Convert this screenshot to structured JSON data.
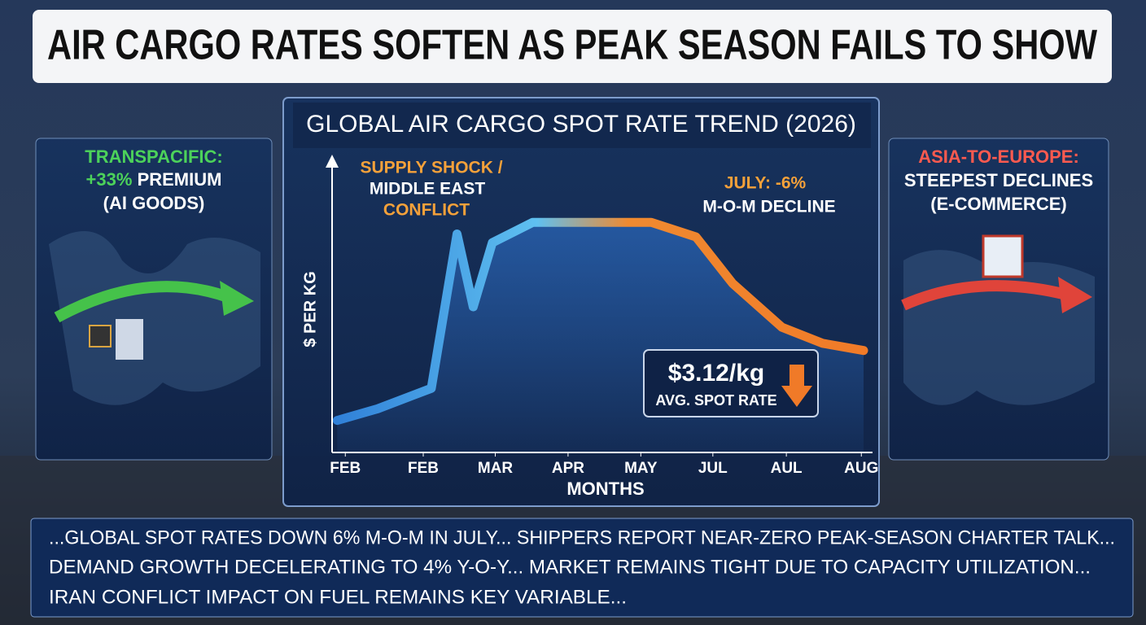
{
  "header": {
    "title": "AIR CARGO RATES SOFTEN AS PEAK SEASON FAILS TO SHOW"
  },
  "chart_data": {
    "type": "line",
    "title": "GLOBAL AIR CARGO SPOT RATE TREND (2026)",
    "y_label": "$ PER KG",
    "x_label": "MONTHS",
    "x": [
      -0.11,
      0.44,
      1.17,
      1.52,
      1.74,
      2.0,
      2.55,
      4.16,
      4.77,
      5.27,
      5.94,
      6.49,
      7.05
    ],
    "series": [
      {
        "colors": [
          "#2f7fd8",
          "#5fc0f0",
          "#f08a30",
          "#f07a28"
        ],
        "fill": "#2a66b8",
        "values": [
          1.1,
          1.5,
          2.2,
          7.5,
          5.0,
          7.2,
          7.9,
          7.9,
          7.4,
          5.8,
          4.3,
          3.75,
          3.5
        ]
      }
    ],
    "xlim": [
      -0.18,
      7.15
    ],
    "ylim": [
      0,
      10
    ],
    "xticks": [
      {
        "value": 0,
        "label": "FEB"
      },
      {
        "value": 1.06,
        "label": "FEB"
      },
      {
        "value": 2.04,
        "label": "MAR"
      },
      {
        "value": 3.03,
        "label": "APR"
      },
      {
        "value": 4.02,
        "label": "MAY"
      },
      {
        "value": 5.0,
        "label": "JUL"
      },
      {
        "value": 6.0,
        "label": "AUL"
      },
      {
        "value": 7.02,
        "label": "AUG"
      }
    ],
    "annotations": {
      "supply": [
        "SUPPLY SHOCK /",
        "MIDDLE EAST",
        "CONFLICT"
      ],
      "july": [
        "JULY: -6%",
        "M-O-M DECLINE"
      ],
      "callout": [
        "$3.12/kg",
        "AVG. SPOT RATE"
      ]
    }
  },
  "panels": {
    "left": {
      "heading": "TRANSPACIFIC:",
      "highlight": "+33%",
      "rest": "PREMIUM",
      "note": "(AI GOODS)"
    },
    "right": {
      "heading": "ASIA-TO-EUROPE:",
      "line": "STEEPEST DECLINES",
      "note": "(E-COMMERCE)"
    }
  },
  "ticker": {
    "lines": [
      "...GLOBAL SPOT RATES DOWN 6% M-O-M IN JULY...  SHIPPERS REPORT NEAR-ZERO PEAK-SEASON CHARTER TALK...",
      "DEMAND GROWTH DECELERATING TO 4% Y-O-Y...  MARKET REMAINS TIGHT DUE TO CAPACITY UTILIZATION...",
      "IRAN CONFLICT IMPACT ON FUEL REMAINS KEY VARIABLE..."
    ]
  }
}
